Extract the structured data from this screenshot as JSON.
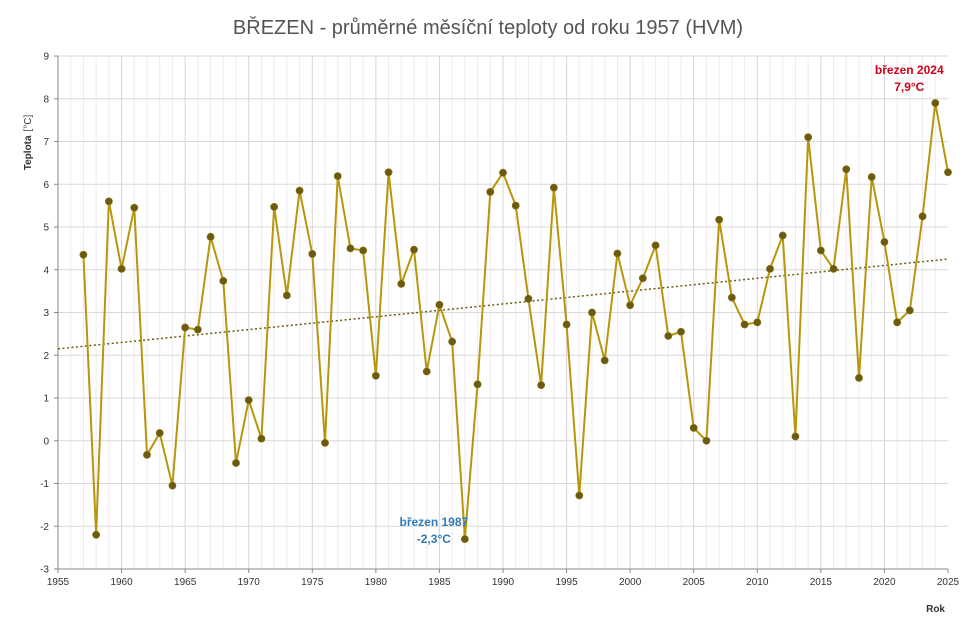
{
  "chart_data": {
    "type": "line",
    "title": "BŘEZEN - průměrné měsíční teploty od roku 1957 (HVM)",
    "xlabel": "Rok",
    "ylabel": "Teplota",
    "ylabel_unit": "[°C]",
    "xlim": [
      1955,
      2025
    ],
    "ylim": [
      -3,
      9
    ],
    "x_ticks": [
      1955,
      1960,
      1965,
      1970,
      1975,
      1980,
      1985,
      1990,
      1995,
      2000,
      2005,
      2010,
      2015,
      2020,
      2025
    ],
    "y_ticks": [
      -3,
      -2,
      -1,
      0,
      1,
      2,
      3,
      4,
      5,
      6,
      7,
      8,
      9
    ],
    "grid": true,
    "legend": "none",
    "colors": {
      "line": "#b8960c",
      "marker": "#6b5a10",
      "trend": "#6b5a10",
      "min_annotation": "#2e7bb6",
      "max_annotation": "#d0021b"
    },
    "series": [
      {
        "x": [
          1957,
          1958,
          1959,
          1960,
          1961,
          1962,
          1963,
          1964,
          1965,
          1966,
          1967,
          1968,
          1969,
          1970,
          1971,
          1972,
          1973,
          1974,
          1975,
          1976,
          1977,
          1978,
          1979,
          1980,
          1981,
          1982,
          1983,
          1984,
          1985,
          1986,
          1987,
          1988,
          1989,
          1990,
          1991,
          1992,
          1993,
          1994,
          1995,
          1996,
          1997,
          1998,
          1999,
          2000,
          2001,
          2002,
          2003,
          2004,
          2005,
          2006,
          2007,
          2008,
          2009,
          2010,
          2011,
          2012,
          2013,
          2014,
          2015,
          2016,
          2017,
          2018,
          2019,
          2020,
          2021,
          2022,
          2023,
          2024,
          2025
        ],
        "values": [
          4.35,
          -2.2,
          5.6,
          4.02,
          5.45,
          -0.33,
          0.18,
          -1.05,
          2.65,
          2.6,
          4.77,
          3.74,
          -0.52,
          0.95,
          0.05,
          5.47,
          3.4,
          5.85,
          4.37,
          -0.05,
          6.19,
          4.5,
          4.45,
          1.52,
          6.28,
          3.67,
          4.47,
          1.62,
          3.18,
          2.32,
          -2.3,
          1.32,
          5.82,
          6.27,
          5.5,
          3.32,
          1.3,
          5.92,
          2.72,
          -1.28,
          3.0,
          1.88,
          4.38,
          3.17,
          3.8,
          4.57,
          2.45,
          2.55,
          0.3,
          0.0,
          5.17,
          3.35,
          2.72,
          2.77,
          4.02,
          4.8,
          0.1,
          7.1,
          4.45,
          4.02,
          6.35,
          1.47,
          6.17,
          4.65,
          2.77,
          3.05,
          5.25,
          7.9,
          6.28
        ]
      }
    ],
    "trendline": {
      "type": "linear",
      "x": [
        1955,
        2025
      ],
      "values": [
        2.15,
        4.25
      ]
    },
    "annotations": [
      {
        "lines": [
          "březen 1987",
          "-2,3°C"
        ],
        "x": 1987,
        "y": -2.3,
        "kind": "min"
      },
      {
        "lines": [
          "březen 2024",
          "7,9°C"
        ],
        "x": 2024,
        "y": 7.9,
        "kind": "max"
      }
    ]
  }
}
